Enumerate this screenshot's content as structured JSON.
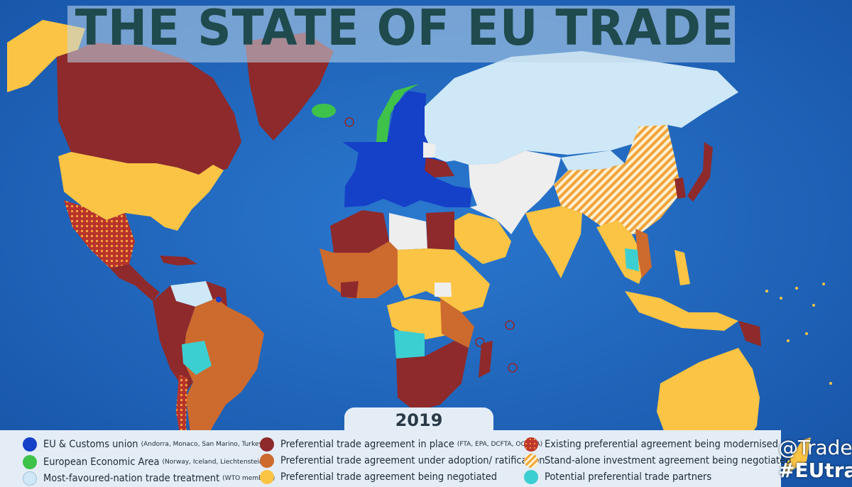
{
  "title": "THE STATE OF EU TRADE",
  "year": "2019",
  "handle": "@Trade_",
  "hashtag": "#EUtra",
  "colors": {
    "ocean": "#1e63b8",
    "eu_customs": "#1540c8",
    "eea": "#3ec24a",
    "mfn": "#cfe8f7",
    "pta_in_place": "#8e2a2b",
    "pta_adoption": "#cd6a2e",
    "pta_negotiated": "#fcc444",
    "modernised": "#c0362c",
    "investment": "#f2a93b",
    "potential": "#3ccfd2",
    "other": "#eeeeee"
  },
  "legend": [
    {
      "label": "EU & Customs union",
      "note": "(Andorra, Monaco, San Marino, Turkey)",
      "color": "#1540c8",
      "icon": "blue-dot"
    },
    {
      "label": "European Economic Area",
      "note": "(Norway, Iceland, Liechtenstein)",
      "color": "#3ec24a",
      "icon": "green-dot"
    },
    {
      "label": "Most-favoured-nation trade treatment",
      "note": "(WTO members)",
      "color": "#cfe8f7",
      "icon": "light-blue-dot"
    },
    {
      "label": "Preferential trade agreement in place",
      "note": "(FTA, EPA, DCFTA, OCT AA)",
      "color": "#8e2a2b",
      "icon": "dark-red-dot"
    },
    {
      "label": "Preferential trade agreement under adoption/ ratification",
      "note": "",
      "color": "#cd6a2e",
      "icon": "orange-dot"
    },
    {
      "label": "Preferential trade agreement being negotiated",
      "note": "",
      "color": "#fcc444",
      "icon": "yellow-dot"
    },
    {
      "label": "Existing preferential agreement being modernised",
      "note": "",
      "color": "#c0362c",
      "icon": "dotted-red-dot"
    },
    {
      "label": "Stand-alone investment agreement being negotiated",
      "note": "",
      "color": "#f2a93b",
      "icon": "hatched-orange-dot"
    },
    {
      "label": "Potential preferential trade partners",
      "note": "",
      "color": "#3ccfd2",
      "icon": "turquoise-dot"
    }
  ]
}
